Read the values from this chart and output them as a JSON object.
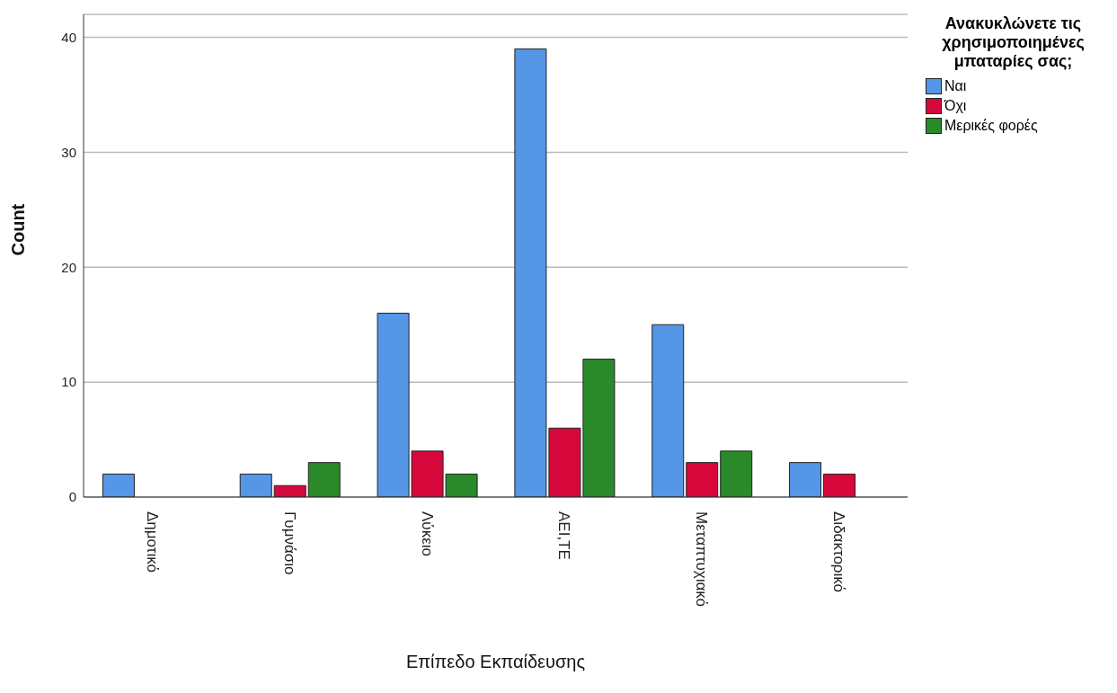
{
  "chart_data": {
    "type": "bar",
    "xlabel": "Επίπεδο Εκπαίδευσης",
    "ylabel": "Count",
    "legend_title": "Ανακυκλώνετε τις χρησιμοποιημένες μπαταρίες σας;",
    "categories": [
      "Δημοτικό",
      "Γυμνάσιο",
      "Λύκειο",
      "ΑΕΙ,ΤΕ",
      "Μεταπτυχιακό",
      "Διδακτορικό"
    ],
    "series": [
      {
        "name": "Ναι",
        "color": "#5596e6",
        "values": [
          2,
          2,
          16,
          39,
          15,
          3
        ]
      },
      {
        "name": "Όχι",
        "color": "#d6083b",
        "values": [
          0,
          1,
          4,
          6,
          3,
          2
        ]
      },
      {
        "name": "Μερικές φορές",
        "color": "#2a8a2a",
        "values": [
          0,
          3,
          2,
          12,
          4,
          0
        ]
      }
    ],
    "ylim": [
      0,
      42
    ],
    "yticks": [
      0,
      10,
      20,
      30,
      40
    ],
    "grid": "y",
    "legend": "top right"
  }
}
